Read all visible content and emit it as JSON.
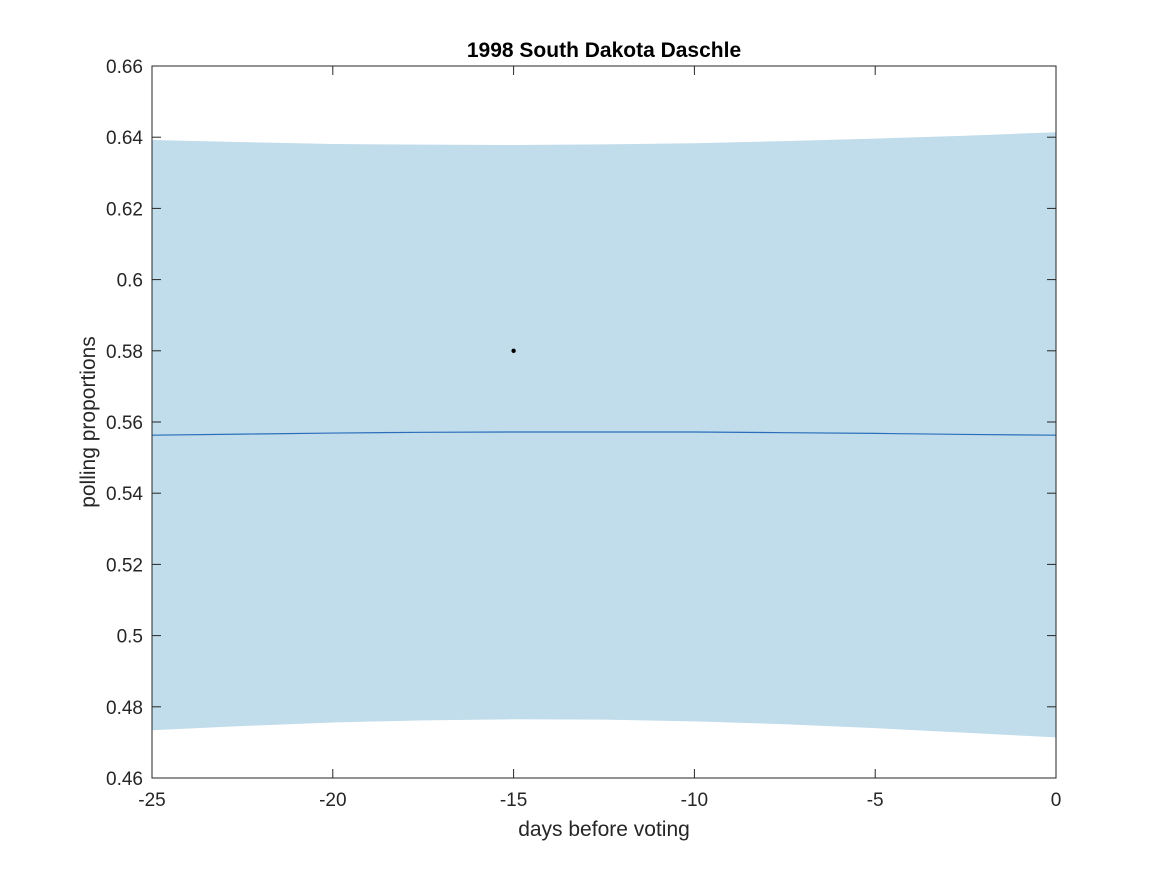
{
  "chart_data": {
    "type": "line",
    "title": "1998 South Dakota Daschle",
    "xlabel": "days before voting",
    "ylabel": "polling proportions",
    "xlim": [
      -25,
      0
    ],
    "ylim": [
      0.46,
      0.66
    ],
    "x_ticks": [
      -25,
      -20,
      -15,
      -10,
      -5,
      0
    ],
    "x_tick_labels": [
      "-25",
      "-20",
      "-15",
      "-10",
      "-5",
      "0"
    ],
    "y_ticks": [
      0.46,
      0.48,
      0.5,
      0.52,
      0.54,
      0.56,
      0.58,
      0.6,
      0.62,
      0.64,
      0.66
    ],
    "y_tick_labels": [
      "0.46",
      "0.48",
      "0.5",
      "0.52",
      "0.54",
      "0.56",
      "0.58",
      "0.6",
      "0.62",
      "0.64",
      "0.66"
    ],
    "grid": false,
    "band": {
      "x": [
        -25,
        -22.5,
        -20,
        -17.5,
        -15,
        -12.5,
        -10,
        -7.5,
        -5,
        -2.5,
        0
      ],
      "upper": [
        0.6392,
        0.6386,
        0.6381,
        0.6379,
        0.6378,
        0.638,
        0.6383,
        0.6389,
        0.6396,
        0.6404,
        0.6414
      ],
      "lower": [
        0.4734,
        0.4746,
        0.4756,
        0.4762,
        0.4765,
        0.4764,
        0.4759,
        0.4751,
        0.474,
        0.4727,
        0.4714
      ],
      "color": "#c1dceb"
    },
    "series": [
      {
        "x": [
          -25,
          -22.5,
          -20,
          -17.5,
          -15,
          -12.5,
          -10,
          -7.5,
          -5,
          -2.5,
          0
        ],
        "values": [
          0.5563,
          0.5566,
          0.5569,
          0.5571,
          0.5572,
          0.5572,
          0.5572,
          0.557,
          0.5568,
          0.5565,
          0.5563
        ],
        "color": "#2a6ebb"
      }
    ],
    "points": [
      {
        "x": -15,
        "y": 0.58,
        "color": "#000000"
      }
    ],
    "axes_color": "#262626"
  }
}
